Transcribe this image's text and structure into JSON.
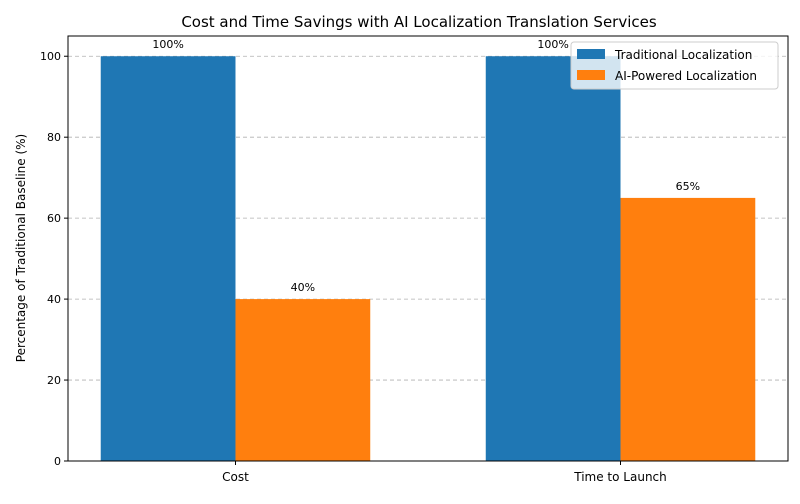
{
  "chart_data": {
    "type": "bar",
    "title": "Cost and Time Savings with AI Localization Translation Services",
    "xlabel": "",
    "ylabel": "Percentage of Traditional Baseline (%)",
    "categories": [
      "Cost",
      "Time to Launch"
    ],
    "series": [
      {
        "name": "Traditional Localization",
        "values": [
          100,
          100
        ],
        "color": "#1f77b4",
        "labels": [
          "100%",
          "100%"
        ]
      },
      {
        "name": "AI-Powered Localization",
        "values": [
          40,
          65
        ],
        "color": "#ff7f0e",
        "labels": [
          "40%",
          "65%"
        ]
      }
    ],
    "ylim": [
      0,
      105
    ],
    "yticks": [
      0,
      20,
      40,
      60,
      80,
      100
    ],
    "grid": "y-dashed",
    "legend": "top-right"
  }
}
